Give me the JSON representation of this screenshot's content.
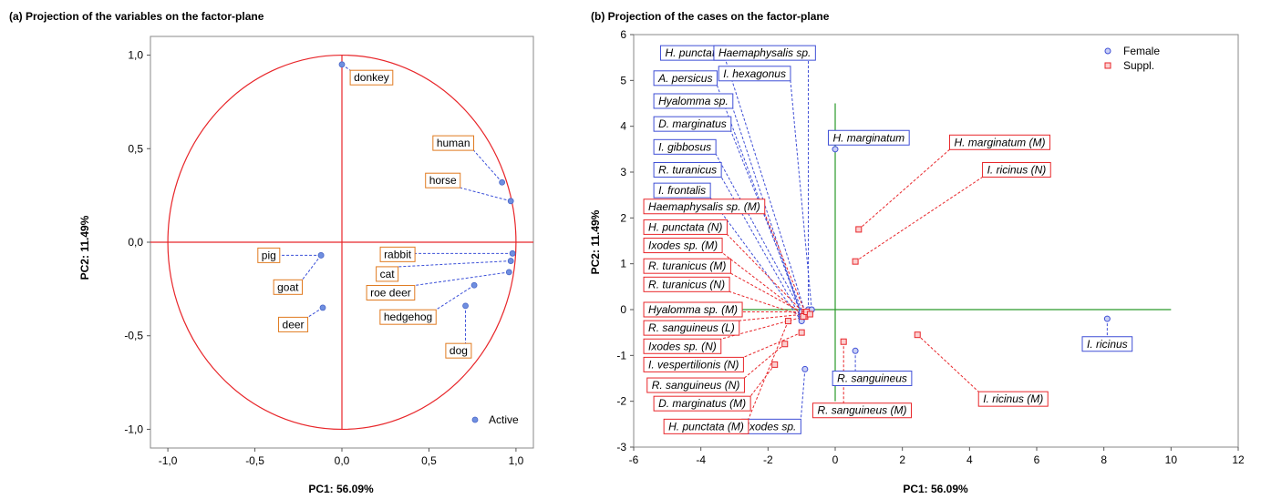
{
  "chart_data": [
    {
      "panel": "a",
      "type": "scatter",
      "title": "(a) Projection of the variables on the factor-plane",
      "xlabel": "PC1: 56.09%",
      "ylabel": "PC2: 11.49%",
      "xlim": [
        -1.1,
        1.1
      ],
      "ylim": [
        -1.1,
        1.1
      ],
      "x_ticks": [
        -1.0,
        -0.5,
        0.0,
        0.5,
        1.0
      ],
      "y_ticks": [
        -1.0,
        -0.5,
        0.0,
        0.5,
        1.0
      ],
      "x_tick_labels": [
        "-1,0",
        "-0,5",
        "0,0",
        "0,5",
        "1,0"
      ],
      "y_tick_labels": [
        "-1,0",
        "-0,5",
        "0,0",
        "0,5",
        "1,0"
      ],
      "unit_circle": true,
      "circle_color": "#e8262a",
      "point_color": "#6f8fe0",
      "label_border_color": "#e07a1f",
      "legend": {
        "position": "bottom-right",
        "entries": [
          "Active"
        ]
      },
      "points": [
        {
          "name": "donkey",
          "x": 0.0,
          "y": 0.95,
          "lx": 0.17,
          "ly": 0.88
        },
        {
          "name": "human",
          "x": 0.92,
          "y": 0.32,
          "lx": 0.64,
          "ly": 0.53
        },
        {
          "name": "horse",
          "x": 0.97,
          "y": 0.22,
          "lx": 0.58,
          "ly": 0.33
        },
        {
          "name": "rabbit",
          "x": 0.98,
          "y": -0.06,
          "lx": 0.32,
          "ly": -0.065
        },
        {
          "name": "cat",
          "x": 0.97,
          "y": -0.1,
          "lx": 0.26,
          "ly": -0.17
        },
        {
          "name": "roe deer",
          "x": 0.96,
          "y": -0.16,
          "lx": 0.28,
          "ly": -0.27
        },
        {
          "name": "hedgehog",
          "x": 0.76,
          "y": -0.23,
          "lx": 0.38,
          "ly": -0.4
        },
        {
          "name": "dog",
          "x": 0.71,
          "y": -0.34,
          "lx": 0.67,
          "ly": -0.58
        },
        {
          "name": "pig",
          "x": -0.12,
          "y": -0.07,
          "lx": -0.42,
          "ly": -0.07
        },
        {
          "name": "goat",
          "x": -0.12,
          "y": -0.07,
          "lx": -0.31,
          "ly": -0.24
        },
        {
          "name": "deer",
          "x": -0.11,
          "y": -0.35,
          "lx": -0.28,
          "ly": -0.44
        }
      ]
    },
    {
      "panel": "b",
      "type": "scatter",
      "title": "(b) Projection of the cases on the factor-plane",
      "xlabel": "PC1: 56.09%",
      "ylabel": "PC2: 11.49%",
      "xlim": [
        -6,
        12
      ],
      "ylim": [
        -3,
        6
      ],
      "x_ticks": [
        -6,
        -4,
        -2,
        0,
        2,
        4,
        6,
        8,
        10,
        12
      ],
      "y_ticks": [
        -3,
        -2,
        -1,
        0,
        1,
        2,
        3,
        4,
        5,
        6
      ],
      "guide_lines_color": "#2a9a2a",
      "guide_lines": {
        "vertical_x": 0,
        "vertical_y_range": [
          -2,
          4.5
        ],
        "horizontal_y": 0,
        "horizontal_x_range": [
          -3,
          10
        ]
      },
      "legend": {
        "position": "top-right",
        "entries": [
          {
            "name": "Female",
            "color": "#3f4fd6",
            "marker": "circle"
          },
          {
            "name": "Suppl.",
            "color": "#e8262a",
            "marker": "square"
          }
        ]
      },
      "female_points": [
        {
          "name": "H. punctata",
          "x": -0.9,
          "y": -0.05,
          "lx": -5.2,
          "ly": 5.6
        },
        {
          "name": "Haemaphysalis sp.",
          "x": -0.8,
          "y": 0.0,
          "lx": -2.1,
          "ly": 5.6
        },
        {
          "name": "A. persicus",
          "x": -1.0,
          "y": -0.1,
          "lx": -5.4,
          "ly": 5.05
        },
        {
          "name": "I. hexagonus",
          "x": -0.7,
          "y": 0.0,
          "lx": -2.4,
          "ly": 5.15
        },
        {
          "name": "Hyalomma sp.",
          "x": -1.0,
          "y": -0.15,
          "lx": -5.4,
          "ly": 4.55
        },
        {
          "name": "D. marginatus",
          "x": -0.95,
          "y": -0.1,
          "lx": -5.4,
          "ly": 4.05
        },
        {
          "name": "H. marginatum",
          "x": 0.0,
          "y": 3.5,
          "lx": 1.0,
          "ly": 3.75
        },
        {
          "name": "I. gibbosus",
          "x": -1.0,
          "y": -0.05,
          "lx": -5.4,
          "ly": 3.55
        },
        {
          "name": "R. turanicus",
          "x": -1.0,
          "y": -0.2,
          "lx": -5.4,
          "ly": 3.05
        },
        {
          "name": "I. frontalis",
          "x": -1.0,
          "y": -0.25,
          "lx": -5.4,
          "ly": 2.6
        },
        {
          "name": "I. ricinus",
          "x": 8.1,
          "y": -0.2,
          "lx": 8.1,
          "ly": -0.75
        },
        {
          "name": "R. sanguineus",
          "x": 0.6,
          "y": -0.9,
          "lx": 1.1,
          "ly": -1.5
        },
        {
          "name": "Ixodes sp.",
          "x": -0.9,
          "y": -1.3,
          "lx": -1.9,
          "ly": -2.55
        }
      ],
      "suppl_points": [
        {
          "name": "H. marginatum (M)",
          "x": 0.7,
          "y": 1.75,
          "lx": 4.9,
          "ly": 3.65
        },
        {
          "name": "I. ricinus (N)",
          "x": 0.6,
          "y": 1.05,
          "lx": 5.4,
          "ly": 3.05
        },
        {
          "name": "Haemaphysalis sp. (M)",
          "x": -0.9,
          "y": -0.05,
          "lx": -5.7,
          "ly": 2.25
        },
        {
          "name": "H. punctata (N)",
          "x": -0.9,
          "y": -0.1,
          "lx": -5.7,
          "ly": 1.8
        },
        {
          "name": "Ixodes sp. (M)",
          "x": -0.9,
          "y": -0.15,
          "lx": -5.7,
          "ly": 1.4
        },
        {
          "name": "R. turanicus (M)",
          "x": -0.9,
          "y": -0.1,
          "lx": -5.7,
          "ly": 0.95
        },
        {
          "name": "R. turanicus (N)",
          "x": -0.9,
          "y": -0.15,
          "lx": -5.7,
          "ly": 0.55
        },
        {
          "name": "Hyalomma sp. (M)",
          "x": -0.9,
          "y": -0.05,
          "lx": -5.7,
          "ly": 0.0
        },
        {
          "name": "R. sanguineus (L)",
          "x": -0.9,
          "y": -0.1,
          "lx": -5.7,
          "ly": -0.4
        },
        {
          "name": "Ixodes sp. (N)",
          "x": -0.9,
          "y": -0.15,
          "lx": -5.7,
          "ly": -0.8
        },
        {
          "name": "I. vespertilionis (N)",
          "x": -1.0,
          "y": -0.5,
          "lx": -5.7,
          "ly": -1.2
        },
        {
          "name": "R. sanguineus (N)",
          "x": -1.5,
          "y": -0.75,
          "lx": -5.6,
          "ly": -1.65
        },
        {
          "name": "D. marginatus (M)",
          "x": -1.8,
          "y": -1.2,
          "lx": -5.4,
          "ly": -2.05
        },
        {
          "name": "H. punctata (M)",
          "x": -1.4,
          "y": -0.25,
          "lx": -5.1,
          "ly": -2.55
        },
        {
          "name": "R. sanguineus (M)",
          "x": 0.25,
          "y": -0.7,
          "lx": 0.8,
          "ly": -2.2
        },
        {
          "name": "I. ricinus (M)",
          "x": 2.45,
          "y": -0.55,
          "lx": 5.3,
          "ly": -1.95
        },
        {
          "name": "",
          "x": -0.95,
          "y": -0.15,
          "lx": null,
          "ly": null
        },
        {
          "name": "",
          "x": -0.85,
          "y": -0.05,
          "lx": null,
          "ly": null
        },
        {
          "name": "",
          "x": -0.75,
          "y": -0.1,
          "lx": null,
          "ly": null
        }
      ],
      "female_color": "#3f4fd6",
      "suppl_color": "#e8262a"
    }
  ]
}
